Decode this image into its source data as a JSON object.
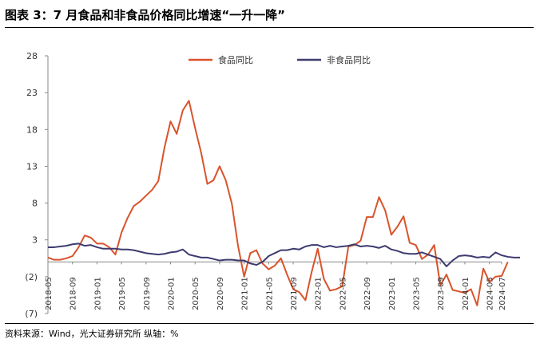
{
  "figure": {
    "title": "图表 3：7 月食品和非食品价格同比增速“一升一降”",
    "source": "资料来源：Wind，光大证券研究所   纵轴：%"
  },
  "chart_data": {
    "type": "line",
    "ylim": [
      -7,
      28
    ],
    "y_ticks": [
      28,
      23,
      18,
      13,
      8,
      3,
      -2,
      -7
    ],
    "y_tick_labels": [
      "28",
      "23",
      "18",
      "13",
      "8",
      "3",
      "(2)",
      "(7)"
    ],
    "x_tick_labels": [
      "2018-05",
      "2018-09",
      "2019-01",
      "2019-05",
      "2019-09",
      "2020-01",
      "2020-05",
      "2020-09",
      "2021-01",
      "2021-05",
      "2021-09",
      "2022-01",
      "2022-05",
      "2022-09",
      "2023-01",
      "2023-05",
      "2023-09",
      "2024-01",
      "2024-05",
      "2024-07"
    ],
    "x_start": "2018-05",
    "x_end": "2024-07",
    "grid": false,
    "legend_position": "top",
    "series": [
      {
        "name": "食品同比",
        "color": "#D9532B",
        "values": [
          0.6,
          0.3,
          0.3,
          0.5,
          0.8,
          2.0,
          3.6,
          3.3,
          2.5,
          2.5,
          2.0,
          1.0,
          4.0,
          6.0,
          7.6,
          8.2,
          9.0,
          9.8,
          11.0,
          15.5,
          19.1,
          17.4,
          20.6,
          21.9,
          18.2,
          14.8,
          10.6,
          11.1,
          13.0,
          11.1,
          7.9,
          2.2,
          -2.0,
          1.2,
          1.6,
          -0.2,
          -1.0,
          -0.5,
          0.5,
          -1.7,
          -3.7,
          -4.1,
          -5.2,
          -1.4,
          1.8,
          -2.3,
          -3.9,
          -3.7,
          -3.3,
          2.1,
          2.3,
          2.9,
          6.1,
          6.1,
          8.8,
          7.0,
          3.7,
          4.8,
          6.2,
          2.6,
          2.3,
          0.4,
          1.0,
          2.3,
          -3.2,
          -1.7,
          -3.8,
          -4.0,
          -4.2,
          -3.7,
          -5.9,
          -0.9,
          -2.7,
          -2.0,
          -1.9,
          0.0
        ]
      },
      {
        "name": "非食品同比",
        "color": "#3D3B6F",
        "values": [
          2.0,
          2.0,
          2.1,
          2.2,
          2.4,
          2.5,
          2.2,
          2.3,
          2.0,
          1.8,
          1.8,
          1.8,
          1.7,
          1.7,
          1.6,
          1.4,
          1.2,
          1.1,
          1.0,
          1.1,
          1.3,
          1.4,
          1.7,
          1.0,
          0.8,
          0.6,
          0.6,
          0.4,
          0.2,
          0.3,
          0.3,
          0.2,
          0.2,
          -0.2,
          -0.4,
          0.0,
          0.8,
          1.2,
          1.6,
          1.6,
          1.8,
          1.7,
          2.1,
          2.3,
          2.3,
          2.0,
          2.2,
          2.0,
          2.1,
          2.2,
          2.4,
          2.1,
          2.2,
          2.1,
          1.9,
          2.2,
          1.7,
          1.5,
          1.2,
          1.1,
          1.1,
          1.3,
          1.0,
          0.7,
          0.4,
          -0.6,
          0.2,
          0.8,
          0.9,
          0.8,
          0.6,
          0.7,
          0.6,
          1.3,
          0.9,
          0.7,
          0.6,
          0.6
        ]
      }
    ]
  }
}
